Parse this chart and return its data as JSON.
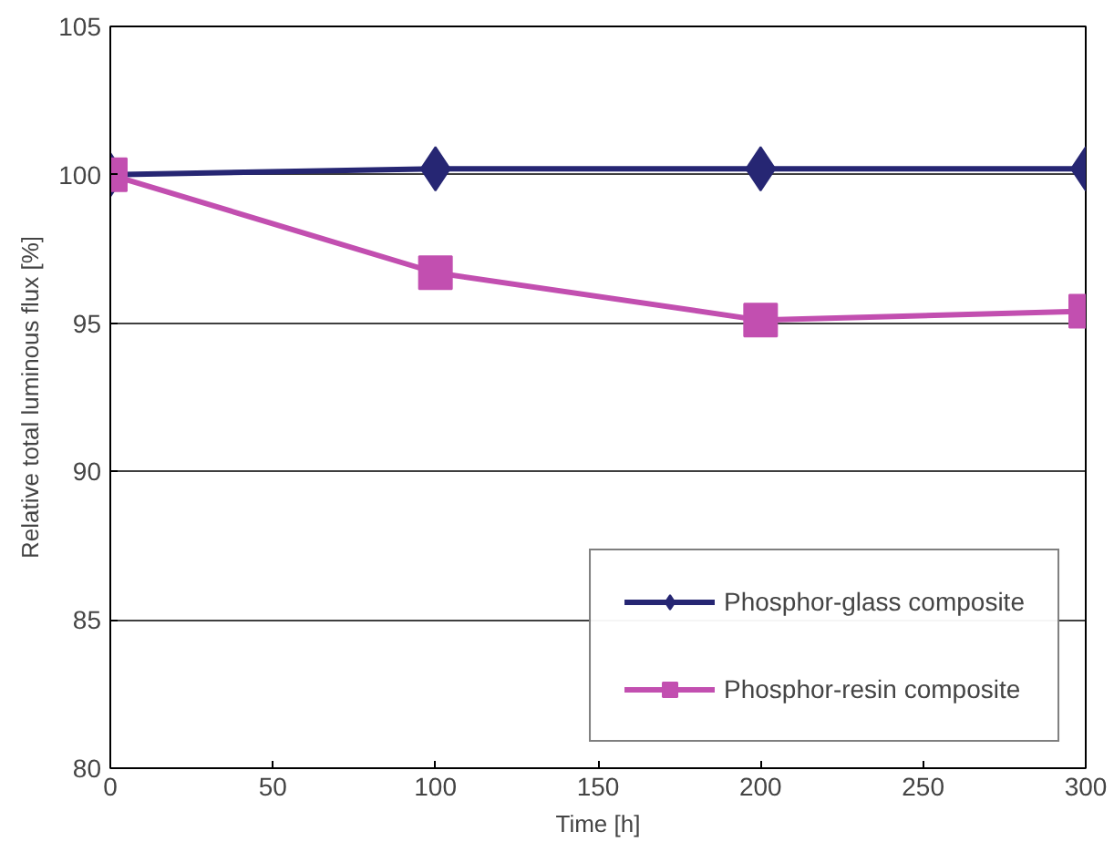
{
  "chart_data": {
    "type": "line",
    "xlabel": "Time [h]",
    "ylabel": "Relative total luminous flux [%]",
    "x": [
      0,
      100,
      200,
      300
    ],
    "series": [
      {
        "name": "Phosphor-glass composite",
        "color": "#262673",
        "marker": "diamond",
        "values": [
          100,
          100.2,
          100.2,
          100.2
        ]
      },
      {
        "name": "Phosphor-resin composite",
        "color": "#c24fb0",
        "marker": "square",
        "values": [
          100,
          96.7,
          95.1,
          95.4
        ]
      }
    ],
    "xlim": [
      0,
      300
    ],
    "xticks": [
      0,
      50,
      100,
      150,
      200,
      250,
      300
    ],
    "ylim": [
      80,
      105
    ],
    "yticks": [
      80,
      85,
      90,
      95,
      100,
      105
    ],
    "grid": "y",
    "legend": "bottom right",
    "line_style": "solid"
  }
}
